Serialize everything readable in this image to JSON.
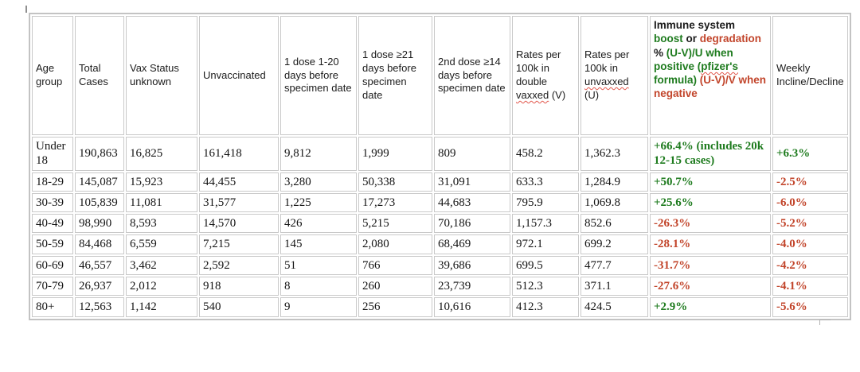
{
  "colors": {
    "positive_green": "#1e7b1e",
    "negative_red": "#c2452b",
    "squiggle_red": "#e2574c",
    "border_gray": "#c9c9c9"
  },
  "chart_data": {
    "type": "table",
    "title": "Cases and case rates by age group and vaccination status",
    "columns": [
      {
        "id": "age_group",
        "label": "Age group"
      },
      {
        "id": "total_cases",
        "label": "Total Cases"
      },
      {
        "id": "vax_status_unknown",
        "label": "Vax Status unknown"
      },
      {
        "id": "unvaccinated",
        "label": "Unvaccinated"
      },
      {
        "id": "dose1_1_20",
        "label": "1 dose 1-20 days before specimen date"
      },
      {
        "id": "dose1_ge21",
        "label": "1 dose ≥21 days before specimen date"
      },
      {
        "id": "dose2_ge14",
        "label": "2nd dose ≥14 days before specimen date"
      },
      {
        "id": "rate_double_vaxxed",
        "segments": [
          {
            "text": "Rates per 100k in double ",
            "color": "black"
          },
          {
            "text": "vaxxed",
            "color": "black",
            "squiggle": true
          },
          {
            "text": " (V)",
            "color": "black"
          }
        ]
      },
      {
        "id": "rate_unvaxxed",
        "segments": [
          {
            "text": "Rates per 100k in ",
            "color": "black"
          },
          {
            "text": "unvaxxed",
            "color": "black",
            "squiggle": true
          },
          {
            "text": " (U)",
            "color": "black"
          }
        ]
      },
      {
        "id": "immune_boost",
        "segments": [
          {
            "text": "Immune system ",
            "color": "black"
          },
          {
            "text": "boost",
            "color": "green"
          },
          {
            "text": " or ",
            "color": "black"
          },
          {
            "text": "degradation",
            "color": "red"
          },
          {
            "text": " % ",
            "color": "black"
          },
          {
            "text": "(U-V)/U when positive (",
            "color": "green"
          },
          {
            "text": "pfizer's",
            "color": "green",
            "squiggle": true
          },
          {
            "text": " formula) ",
            "color": "green"
          },
          {
            "text": "(U-V)/V when negative",
            "color": "red"
          }
        ]
      },
      {
        "id": "weekly",
        "label": "Weekly Incline/Decline"
      }
    ],
    "rows": [
      [
        "Under 18",
        "190,863",
        "16,825",
        "161,418",
        "9,812",
        "1,999",
        "809",
        "458.2",
        "1,362.3",
        "+66.4% (includes 20k 12-15 cases)",
        "+6.3%"
      ],
      [
        "18-29",
        "145,087",
        "15,923",
        "44,455",
        "3,280",
        "50,338",
        "31,091",
        "633.3",
        "1,284.9",
        "+50.7%",
        "-2.5%"
      ],
      [
        "30-39",
        "105,839",
        "11,081",
        "31,577",
        "1,225",
        "17,273",
        "44,683",
        "795.9",
        "1,069.8",
        "+25.6%",
        "-6.0%"
      ],
      [
        "40-49",
        "98,990",
        "8,593",
        "14,570",
        "426",
        "5,215",
        "70,186",
        "1,157.3",
        "852.6",
        "-26.3%",
        "-5.2%"
      ],
      [
        "50-59",
        "84,468",
        "6,559",
        "7,215",
        "145",
        "2,080",
        "68,469",
        "972.1",
        "699.2",
        "-28.1%",
        "-4.0%"
      ],
      [
        "60-69",
        "46,557",
        "3,462",
        "2,592",
        "51",
        "766",
        "39,686",
        "699.5",
        "477.7",
        "-31.7%",
        "-4.2%"
      ],
      [
        "70-79",
        "26,937",
        "2,012",
        "918",
        "8",
        "260",
        "23,739",
        "512.3",
        "371.1",
        "-27.6%",
        "-4.1%"
      ],
      [
        "80+",
        "12,563",
        "1,142",
        "540",
        "9",
        "256",
        "10,616",
        "412.3",
        "424.5",
        "+2.9%",
        "-5.6%"
      ]
    ]
  }
}
